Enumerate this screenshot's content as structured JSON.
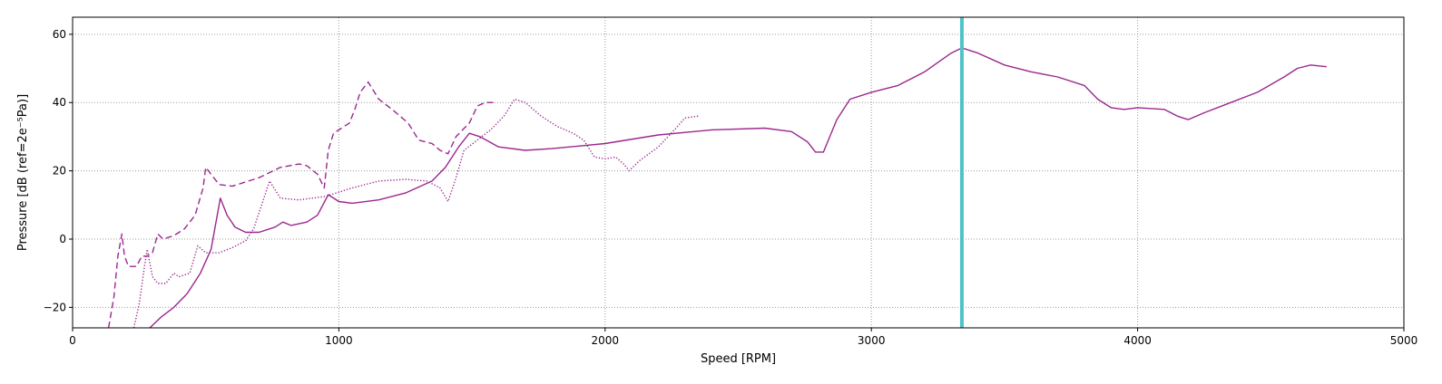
{
  "chart_data": {
    "type": "line",
    "xlabel": "Speed [RPM]",
    "ylabel": "Pressure [dB (ref=2e⁻⁵Pa)]",
    "xlim": [
      0,
      5000
    ],
    "ylim": [
      -26,
      65
    ],
    "x_ticks": [
      0,
      1000,
      2000,
      3000,
      4000,
      5000
    ],
    "y_ticks": [
      -20,
      0,
      20,
      40,
      60
    ],
    "grid": true,
    "line_color": "#9b2790",
    "marker_color": "#4fc3c8",
    "vertical_marker_x": 3340,
    "series": [
      {
        "style": "solid",
        "points": [
          [
            290,
            -26
          ],
          [
            330,
            -23
          ],
          [
            380,
            -20
          ],
          [
            430,
            -16
          ],
          [
            480,
            -10
          ],
          [
            520,
            -3
          ],
          [
            555,
            12
          ],
          [
            580,
            7
          ],
          [
            610,
            3.5
          ],
          [
            650,
            2
          ],
          [
            700,
            2
          ],
          [
            760,
            3.5
          ],
          [
            790,
            5
          ],
          [
            820,
            4
          ],
          [
            880,
            5
          ],
          [
            920,
            7
          ],
          [
            960,
            13
          ],
          [
            1000,
            11
          ],
          [
            1050,
            10.5
          ],
          [
            1150,
            11.5
          ],
          [
            1250,
            13.5
          ],
          [
            1350,
            17
          ],
          [
            1400,
            21
          ],
          [
            1450,
            27
          ],
          [
            1490,
            31
          ],
          [
            1530,
            30
          ],
          [
            1600,
            27
          ],
          [
            1700,
            26
          ],
          [
            1800,
            26.5
          ],
          [
            2000,
            28
          ],
          [
            2200,
            30.5
          ],
          [
            2400,
            32
          ],
          [
            2600,
            32.5
          ],
          [
            2700,
            31.5
          ],
          [
            2760,
            28.5
          ],
          [
            2790,
            25.5
          ],
          [
            2820,
            25.5
          ],
          [
            2870,
            35
          ],
          [
            2920,
            41
          ],
          [
            3000,
            43
          ],
          [
            3100,
            45
          ],
          [
            3200,
            49
          ],
          [
            3300,
            54.5
          ],
          [
            3340,
            56
          ],
          [
            3400,
            54.5
          ],
          [
            3500,
            51
          ],
          [
            3600,
            49
          ],
          [
            3700,
            47.5
          ],
          [
            3800,
            45
          ],
          [
            3850,
            41
          ],
          [
            3900,
            38.5
          ],
          [
            3950,
            38
          ],
          [
            4000,
            38.5
          ],
          [
            4100,
            38
          ],
          [
            4150,
            36
          ],
          [
            4190,
            35
          ],
          [
            4250,
            37
          ],
          [
            4350,
            40
          ],
          [
            4450,
            43
          ],
          [
            4550,
            47.5
          ],
          [
            4600,
            50
          ],
          [
            4650,
            51
          ],
          [
            4710,
            50.5
          ]
        ]
      },
      {
        "style": "dashed",
        "points": [
          [
            135,
            -26
          ],
          [
            155,
            -17
          ],
          [
            170,
            -5
          ],
          [
            185,
            1.5
          ],
          [
            195,
            -5
          ],
          [
            210,
            -8
          ],
          [
            240,
            -8
          ],
          [
            260,
            -5
          ],
          [
            280,
            -5
          ],
          [
            300,
            -4
          ],
          [
            320,
            1.5
          ],
          [
            340,
            0
          ],
          [
            380,
            1
          ],
          [
            420,
            3
          ],
          [
            460,
            7
          ],
          [
            490,
            15
          ],
          [
            500,
            21
          ],
          [
            520,
            19
          ],
          [
            550,
            16
          ],
          [
            600,
            15.5
          ],
          [
            700,
            18
          ],
          [
            780,
            21
          ],
          [
            850,
            22
          ],
          [
            880,
            21.5
          ],
          [
            920,
            19
          ],
          [
            945,
            15
          ],
          [
            960,
            26
          ],
          [
            980,
            31
          ],
          [
            1040,
            34
          ],
          [
            1060,
            38
          ],
          [
            1080,
            43
          ],
          [
            1110,
            46
          ],
          [
            1150,
            41
          ],
          [
            1200,
            38
          ],
          [
            1260,
            34
          ],
          [
            1300,
            29
          ],
          [
            1350,
            28
          ],
          [
            1380,
            26
          ],
          [
            1410,
            25
          ],
          [
            1440,
            30
          ],
          [
            1490,
            34
          ],
          [
            1520,
            39
          ],
          [
            1550,
            40
          ],
          [
            1580,
            40
          ]
        ]
      },
      {
        "style": "dotted",
        "points": [
          [
            230,
            -26
          ],
          [
            250,
            -19
          ],
          [
            270,
            -8
          ],
          [
            280,
            -3
          ],
          [
            300,
            -11
          ],
          [
            320,
            -13
          ],
          [
            350,
            -13
          ],
          [
            380,
            -10
          ],
          [
            400,
            -11
          ],
          [
            440,
            -10
          ],
          [
            470,
            -2
          ],
          [
            500,
            -4
          ],
          [
            550,
            -4
          ],
          [
            600,
            -2.5
          ],
          [
            650,
            -0.5
          ],
          [
            680,
            3
          ],
          [
            710,
            10
          ],
          [
            740,
            17
          ],
          [
            780,
            12
          ],
          [
            850,
            11.5
          ],
          [
            950,
            12.5
          ],
          [
            1050,
            15
          ],
          [
            1150,
            17
          ],
          [
            1250,
            17.5
          ],
          [
            1330,
            17
          ],
          [
            1380,
            15
          ],
          [
            1410,
            11
          ],
          [
            1440,
            18
          ],
          [
            1470,
            26
          ],
          [
            1520,
            29
          ],
          [
            1570,
            32
          ],
          [
            1620,
            36
          ],
          [
            1660,
            41
          ],
          [
            1700,
            40
          ],
          [
            1760,
            36
          ],
          [
            1820,
            33
          ],
          [
            1880,
            31
          ],
          [
            1920,
            29
          ],
          [
            1960,
            24
          ],
          [
            2000,
            23.5
          ],
          [
            2040,
            24
          ],
          [
            2070,
            22
          ],
          [
            2090,
            20
          ],
          [
            2130,
            23
          ],
          [
            2200,
            27
          ],
          [
            2260,
            32
          ],
          [
            2300,
            35.5
          ],
          [
            2350,
            36
          ]
        ]
      }
    ]
  }
}
